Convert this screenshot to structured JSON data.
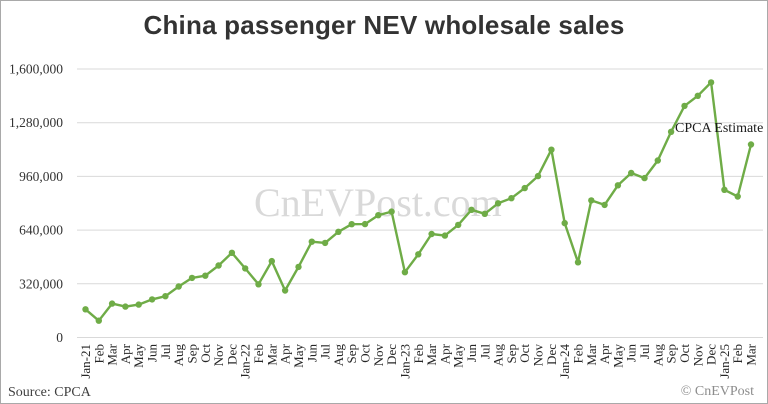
{
  "header": {
    "title": "China passenger NEV wholesale sales"
  },
  "watermark": "CnEVPost.com",
  "annotation_label": "CPCA Estimate",
  "footer": {
    "source": "Source: CPCA",
    "copyright": "© CnEVPost"
  },
  "colors": {
    "line": "#6fac47",
    "grid": "#d9d9d9",
    "title_text": "#333333",
    "axis_text": "#333333",
    "watermark_text": "#d9d9d9",
    "annotation_text": "#1a1a1a",
    "source_text": "#3f3f3f",
    "copyright_text": "#8c8c8c",
    "background": "#ffffff",
    "border": "#a9a9a9"
  },
  "chart_data": {
    "type": "line",
    "title": "China passenger NEV wholesale sales",
    "xlabel": "",
    "ylabel": "",
    "x": [
      "Jan-21",
      "Feb",
      "Mar",
      "Apr",
      "May",
      "Jun",
      "Jul",
      "Aug",
      "Sep",
      "Oct",
      "Nov",
      "Dec",
      "Jan-22",
      "Feb",
      "Mar",
      "Apr",
      "May",
      "Jun",
      "Jul",
      "Aug",
      "Sep",
      "Oct",
      "Nov",
      "Dec",
      "Jan-23",
      "Feb",
      "Mar",
      "Apr",
      "May",
      "Jun",
      "Jul",
      "Aug",
      "Sep",
      "Oct",
      "Nov",
      "Dec",
      "Jan-24",
      "Feb",
      "Mar",
      "Apr",
      "May",
      "Jun",
      "Jul",
      "Aug",
      "Sep",
      "Oct",
      "Nov",
      "Dec",
      "Jan-25",
      "Feb",
      "Mar"
    ],
    "series": [
      {
        "name": "China passenger NEV wholesale sales",
        "values": [
          168000,
          100000,
          202000,
          184000,
          196000,
          227000,
          246000,
          304000,
          355000,
          368000,
          429000,
          505000,
          412000,
          317000,
          455000,
          280000,
          421000,
          571000,
          564000,
          630000,
          675000,
          676000,
          729000,
          750000,
          389000,
          496000,
          617000,
          607000,
          671000,
          761000,
          737000,
          800000,
          830000,
          890000,
          962000,
          1119000,
          682000,
          448000,
          817000,
          790000,
          907000,
          980000,
          950000,
          1055000,
          1226000,
          1380000,
          1440000,
          1520000,
          880000,
          840000,
          1150000
        ]
      }
    ],
    "ylim": [
      0,
      1600000
    ],
    "ytick_values": [
      0,
      320000,
      640000,
      960000,
      1280000,
      1600000
    ],
    "ytick_labels": [
      "0",
      "320,000",
      "640,000",
      "960,000",
      "1,280,000",
      "1,600,000"
    ],
    "grid": true,
    "legend": false,
    "line_color": "#6fac47",
    "annotation": {
      "text": "CPCA Estimate",
      "applies_to": "Mar-25",
      "applies_to_value": 1150000
    }
  }
}
